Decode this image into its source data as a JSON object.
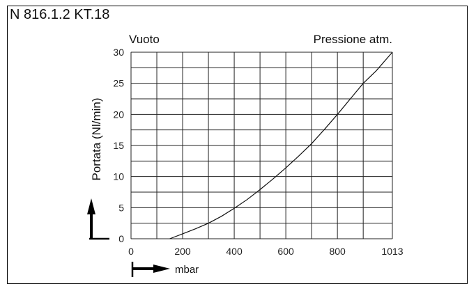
{
  "header": {
    "title": "N 816.1.2 KT.18"
  },
  "chart_data": {
    "type": "line",
    "corner_left": "Vuoto",
    "corner_right": "Pressione atm.",
    "ylabel": "Portata (Nl/min)",
    "xlabel": "mbar",
    "xlim": [
      0,
      1013
    ],
    "ylim": [
      0,
      30
    ],
    "x_ticks": [
      0,
      200,
      400,
      600,
      800,
      1013
    ],
    "x_tick_labels": [
      "0",
      "200",
      "400",
      "600",
      "800",
      "1013"
    ],
    "y_ticks": [
      0,
      5,
      10,
      15,
      20,
      25,
      30
    ],
    "y_tick_labels": [
      "0",
      "5",
      "10",
      "15",
      "20",
      "25",
      "30"
    ],
    "grid": true,
    "series": [
      {
        "x": [
          150,
          200,
          250,
          300,
          350,
          400,
          450,
          500,
          550,
          600,
          650,
          700,
          750,
          800,
          850,
          900,
          950,
          1013
        ],
        "y": [
          0,
          0.8,
          1.6,
          2.5,
          3.6,
          4.9,
          6.3,
          7.9,
          9.6,
          11.4,
          13.3,
          15.3,
          17.6,
          20.0,
          22.5,
          25.0,
          27.0,
          30.0
        ]
      }
    ]
  }
}
